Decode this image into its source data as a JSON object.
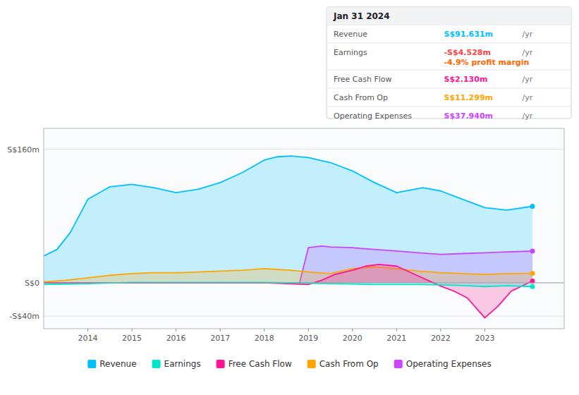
{
  "chart_data": {
    "type": "area",
    "xlim": [
      2013.0,
      2024.8
    ],
    "ylim": [
      -55,
      185
    ],
    "xticks": [
      2014,
      2015,
      2016,
      2017,
      2018,
      2019,
      2020,
      2021,
      2022,
      2023
    ],
    "yticks": [
      {
        "value": -40,
        "label": "-S$40m"
      },
      {
        "value": 0,
        "label": "S$0"
      },
      {
        "value": 160,
        "label": "S$160m"
      }
    ],
    "grid": true,
    "legend": "bottom",
    "series": [
      {
        "name": "Revenue",
        "color": "#00bfff",
        "x": [
          2013.0,
          2013.3,
          2013.6,
          2014.0,
          2014.5,
          2015.0,
          2015.5,
          2016.0,
          2016.5,
          2017.0,
          2017.5,
          2018.0,
          2018.3,
          2018.6,
          2019.0,
          2019.5,
          2020.0,
          2020.5,
          2021.0,
          2021.3,
          2021.6,
          2022.0,
          2022.5,
          2023.0,
          2023.5,
          2024.08
        ],
        "values": [
          32,
          40,
          60,
          100,
          115,
          118,
          114,
          108,
          112,
          120,
          132,
          147,
          151,
          152,
          150,
          144,
          134,
          120,
          108,
          111,
          114,
          110,
          100,
          90,
          87,
          91.631
        ]
      },
      {
        "name": "Earnings",
        "color": "#00e5cc",
        "x": [
          2013.0,
          2014.0,
          2015.0,
          2016.0,
          2017.0,
          2018.0,
          2019.0,
          2019.5,
          2020.0,
          2020.5,
          2021.0,
          2021.5,
          2022.0,
          2022.3,
          2022.6,
          2023.0,
          2023.5,
          2024.08
        ],
        "values": [
          -2,
          -1,
          0.5,
          0.5,
          0.5,
          0.5,
          -0.5,
          -1,
          -1.5,
          -2,
          -2,
          -2,
          -2.5,
          -3,
          -3.5,
          -4.5,
          -3.5,
          -4.528
        ]
      },
      {
        "name": "Free Cash Flow",
        "color": "#ff1493",
        "x": [
          2013.0,
          2014.0,
          2015.0,
          2016.0,
          2017.0,
          2018.0,
          2018.5,
          2019.0,
          2019.3,
          2019.6,
          2020.0,
          2020.3,
          2020.6,
          2021.0,
          2021.5,
          2022.0,
          2022.3,
          2022.6,
          2023.0,
          2023.3,
          2023.6,
          2024.08
        ],
        "values": [
          0,
          0,
          0,
          0,
          0,
          0,
          -1,
          -2,
          3,
          10,
          15,
          20,
          22,
          20,
          8,
          -4,
          -10,
          -18,
          -42,
          -28,
          -10,
          2.13
        ]
      },
      {
        "name": "Cash From Op",
        "color": "#ffa500",
        "x": [
          2013.0,
          2013.5,
          2014.0,
          2014.5,
          2015.0,
          2015.5,
          2016.0,
          2016.5,
          2017.0,
          2017.5,
          2018.0,
          2018.3,
          2018.6,
          2019.0,
          2019.5,
          2020.0,
          2020.5,
          2021.0,
          2021.5,
          2022.0,
          2022.5,
          2023.0,
          2023.5,
          2024.08
        ],
        "values": [
          1,
          3,
          6,
          9,
          11,
          12,
          12,
          13,
          14,
          15,
          17,
          16,
          15,
          13,
          11,
          17,
          19,
          17,
          14,
          12,
          11,
          10,
          11,
          11.299
        ]
      },
      {
        "name": "Operating Expenses",
        "color": "#cc44ff",
        "x": [
          2013.0,
          2014.0,
          2015.0,
          2016.0,
          2017.0,
          2018.0,
          2018.8,
          2019.0,
          2019.3,
          2019.5,
          2020.0,
          2020.5,
          2021.0,
          2021.5,
          2022.0,
          2022.5,
          2023.0,
          2023.5,
          2024.08
        ],
        "values": [
          0,
          0,
          0,
          0,
          0,
          0,
          0,
          42,
          44,
          43,
          42,
          40,
          38,
          36,
          34,
          35,
          36,
          37,
          37.94
        ]
      }
    ],
    "annotations": {
      "title": "Jan 31 2024",
      "rows": [
        {
          "label": "Revenue",
          "text": "S$91.631m",
          "color": "#00bfff",
          "unit": "/yr"
        },
        {
          "label": "Earnings",
          "text": "-S$4.528m",
          "color": "#ff4444",
          "unit": "/yr",
          "note": "-4.9% profit margin",
          "note_color": "#ff6600"
        },
        {
          "label": "Free Cash Flow",
          "text": "S$2.130m",
          "color": "#ff1493",
          "unit": "/yr"
        },
        {
          "label": "Cash From Op",
          "text": "S$11.299m",
          "color": "#ffa500",
          "unit": "/yr"
        },
        {
          "label": "Operating Expenses",
          "text": "S$37.940m",
          "color": "#cc44ff",
          "unit": "/yr"
        }
      ]
    }
  }
}
